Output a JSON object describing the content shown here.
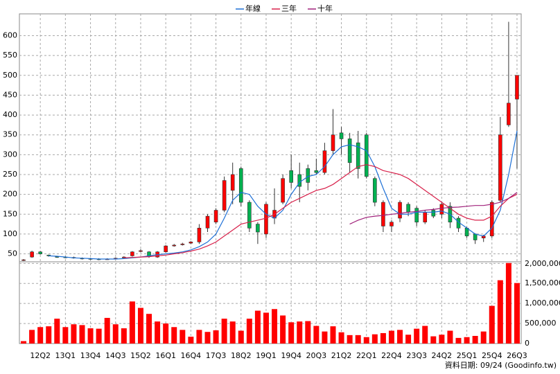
{
  "chart_data": [
    {
      "type": "candlestick",
      "categories": [
        null,
        null,
        "12Q2",
        null,
        null,
        "13Q1",
        null,
        null,
        "13Q4",
        null,
        null,
        "14Q3",
        null,
        null,
        "15Q2",
        null,
        null,
        "16Q1",
        null,
        null,
        "16Q4",
        null,
        null,
        "17Q3",
        null,
        null,
        "18Q2",
        null,
        null,
        "19Q1",
        null,
        null,
        "19Q4",
        null,
        null,
        "20Q3",
        null,
        null,
        "21Q2",
        null,
        null,
        "22Q1",
        null,
        null,
        "22Q4",
        null,
        null,
        "23Q3",
        null,
        null,
        "24Q2",
        null,
        null,
        "25Q1",
        null,
        null,
        "25Q4",
        null,
        null,
        "26Q3"
      ],
      "open": [
        35,
        42,
        55,
        47,
        43,
        42,
        41,
        39,
        38,
        37,
        37,
        38,
        40,
        45,
        56,
        55,
        42,
        55,
        70,
        73,
        77,
        80,
        115,
        130,
        160,
        210,
        265,
        180,
        125,
        100,
        140,
        180,
        260,
        250,
        265,
        260,
        255,
        310,
        355,
        340,
        330,
        350,
        240,
        120,
        120,
        140,
        175,
        165,
        130,
        160,
        150,
        170,
        140,
        115,
        100,
        90,
        95,
        185,
        375,
        440
      ],
      "high": [
        37,
        58,
        57,
        48,
        45,
        44,
        43,
        41,
        40,
        39,
        39,
        41,
        44,
        57,
        62,
        57,
        57,
        72,
        75,
        78,
        82,
        125,
        150,
        165,
        245,
        280,
        270,
        185,
        130,
        180,
        215,
        250,
        300,
        280,
        275,
        290,
        330,
        415,
        370,
        355,
        360,
        355,
        245,
        185,
        135,
        185,
        180,
        170,
        160,
        165,
        180,
        180,
        145,
        118,
        102,
        98,
        185,
        395,
        635,
        500
      ],
      "low": [
        32,
        40,
        48,
        43,
        40,
        39,
        38,
        36,
        35,
        34,
        35,
        37,
        39,
        43,
        54,
        40,
        40,
        53,
        68,
        71,
        75,
        75,
        105,
        125,
        155,
        175,
        170,
        105,
        75,
        90,
        125,
        175,
        215,
        180,
        210,
        250,
        250,
        300,
        300,
        255,
        240,
        240,
        170,
        105,
        105,
        130,
        145,
        120,
        125,
        140,
        140,
        115,
        105,
        90,
        75,
        80,
        90,
        180,
        370,
        265
      ],
      "close": [
        35,
        55,
        50,
        45,
        42,
        41,
        40,
        38,
        37,
        36,
        37,
        39,
        42,
        55,
        58,
        43,
        55,
        70,
        72,
        75,
        80,
        115,
        145,
        160,
        235,
        250,
        180,
        115,
        105,
        175,
        160,
        240,
        230,
        220,
        230,
        255,
        310,
        350,
        340,
        280,
        265,
        245,
        180,
        180,
        130,
        180,
        155,
        130,
        155,
        145,
        175,
        130,
        115,
        95,
        85,
        95,
        180,
        350,
        430,
        500
      ],
      "up_color": "#ff0000",
      "down_color": "#00b050",
      "series": [
        {
          "name": "年線",
          "color": "#1c6fd6",
          "values": [
            null,
            null,
            null,
            45,
            44,
            42,
            40,
            39,
            38,
            37,
            37,
            37,
            38,
            40,
            42,
            45,
            48,
            50,
            52,
            55,
            60,
            68,
            80,
            100,
            140,
            185,
            205,
            200,
            170,
            150,
            140,
            160,
            200,
            230,
            245,
            250,
            270,
            300,
            320,
            325,
            320,
            310,
            270,
            215,
            165,
            150,
            150,
            155,
            155,
            155,
            158,
            150,
            130,
            115,
            100,
            95,
            115,
            160,
            250,
            360
          ]
        },
        {
          "name": "三年",
          "color": "#d8204a",
          "values": [
            null,
            null,
            null,
            null,
            null,
            null,
            null,
            null,
            null,
            null,
            null,
            null,
            40,
            41,
            42,
            43,
            45,
            47,
            50,
            53,
            57,
            62,
            70,
            80,
            95,
            110,
            125,
            130,
            135,
            140,
            150,
            165,
            180,
            190,
            200,
            210,
            215,
            225,
            240,
            255,
            270,
            275,
            270,
            260,
            255,
            250,
            240,
            225,
            210,
            195,
            180,
            165,
            150,
            140,
            135,
            135,
            145,
            170,
            190,
            200
          ]
        },
        {
          "name": "十年",
          "color": "#a0207a",
          "values": [
            null,
            null,
            null,
            null,
            null,
            null,
            null,
            null,
            null,
            null,
            null,
            null,
            null,
            null,
            null,
            null,
            null,
            null,
            null,
            null,
            null,
            null,
            null,
            null,
            null,
            null,
            null,
            null,
            null,
            null,
            null,
            null,
            null,
            null,
            null,
            null,
            null,
            null,
            null,
            125,
            135,
            142,
            145,
            147,
            150,
            152,
            155,
            157,
            160,
            162,
            165,
            167,
            168,
            170,
            172,
            172,
            175,
            180,
            190,
            205
          ]
        }
      ],
      "ylim": [
        30,
        655
      ],
      "yticks": [
        50,
        100,
        150,
        200,
        250,
        300,
        350,
        400,
        450,
        500,
        550,
        600
      ],
      "grid": true
    },
    {
      "type": "bar",
      "color": "#ff0000",
      "values": [
        60000,
        340000,
        410000,
        430000,
        620000,
        410000,
        480000,
        460000,
        380000,
        370000,
        640000,
        480000,
        380000,
        1050000,
        890000,
        740000,
        550000,
        500000,
        410000,
        340000,
        170000,
        340000,
        290000,
        330000,
        620000,
        550000,
        320000,
        620000,
        820000,
        770000,
        860000,
        700000,
        530000,
        550000,
        560000,
        440000,
        300000,
        430000,
        280000,
        210000,
        210000,
        160000,
        230000,
        260000,
        320000,
        340000,
        220000,
        370000,
        440000,
        180000,
        220000,
        320000,
        140000,
        160000,
        190000,
        300000,
        940000,
        1580000,
        2010000,
        1510000
      ],
      "ylim": [
        0,
        2040000
      ],
      "yticks": [
        0,
        {
          "value": 500000,
          "label": "500,000"
        },
        {
          "value": 1000000,
          "label": "1,000,000"
        },
        {
          "value": 1500000,
          "label": "1,500,000"
        },
        {
          "value": 2000000,
          "label": "2,000,000"
        }
      ],
      "grid": true
    }
  ],
  "footer": "資料日期: 09/24 (Goodinfo.tw)"
}
